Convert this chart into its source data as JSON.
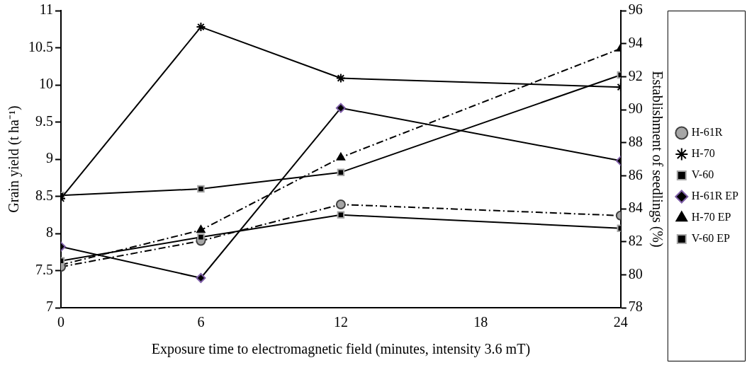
{
  "chart_data": {
    "type": "line",
    "xlabel": "Exposure time to electromagnetic field (minutes, intensity 3.6 mT)",
    "ylabel": "Grain yield (t ha⁻¹)",
    "y2label": "Establishment of seedlings (%)",
    "x": [
      0,
      6,
      12,
      24
    ],
    "xlim": [
      0,
      24
    ],
    "xticks": [
      0,
      6,
      12,
      18,
      24
    ],
    "ylim": [
      7,
      11
    ],
    "yticks": [
      7,
      7.5,
      8,
      8.5,
      9,
      9.5,
      10,
      10.5,
      11
    ],
    "y2lim": [
      78,
      96
    ],
    "y2ticks": [
      78,
      80,
      82,
      84,
      86,
      88,
      90,
      92,
      94,
      96
    ],
    "grid": false,
    "legend": "right",
    "series": [
      {
        "name": "H-61R",
        "color": "#000000",
        "marker": "circle",
        "line_style": "dashed",
        "values": [
          7.55,
          7.9,
          8.39,
          8.24
        ]
      },
      {
        "name": "H-70",
        "color": "#000000",
        "marker": "cross",
        "line_style": "solid",
        "values": [
          8.47,
          10.78,
          10.09,
          9.97
        ]
      },
      {
        "name": "V-60",
        "color": "#000000",
        "marker": "square",
        "line_style": "solid",
        "values": [
          7.63,
          7.95,
          8.25,
          8.07
        ]
      },
      {
        "name": "H-61R EP",
        "color": "#000000",
        "marker": "diamond",
        "line_style": "solid",
        "axis": "y2",
        "values": [
          81.7,
          79.8,
          90.1,
          86.9
        ]
      },
      {
        "name": "H-70 EP",
        "color": "#000000",
        "marker": "triangle",
        "line_style": "dashed",
        "axis": "y2",
        "values": [
          80.6,
          82.7,
          87.1,
          93.7
        ]
      },
      {
        "name": "V-60 EP",
        "color": "#000000",
        "marker": "square",
        "line_style": "solid",
        "axis": "y2",
        "values": [
          84.8,
          85.2,
          86.2,
          92.1
        ]
      }
    ]
  }
}
